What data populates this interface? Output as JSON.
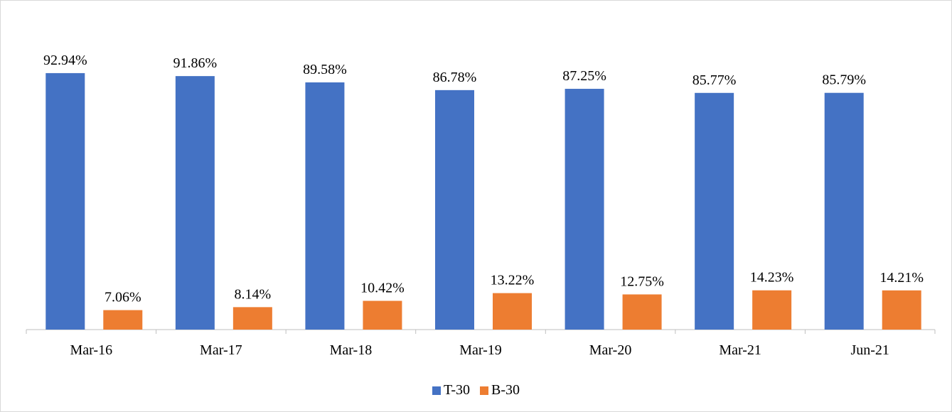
{
  "chart_data": {
    "type": "bar",
    "categories": [
      "Mar-16",
      "Mar-17",
      "Mar-18",
      "Mar-19",
      "Mar-20",
      "Mar-21",
      "Jun-21"
    ],
    "series": [
      {
        "name": "T-30",
        "color": "#4472c4",
        "values": [
          92.94,
          91.86,
          89.58,
          86.78,
          87.25,
          85.77,
          85.79
        ],
        "labels": [
          "92.94%",
          "91.86%",
          "89.58%",
          "86.78%",
          "87.25%",
          "85.77%",
          "85.79%"
        ]
      },
      {
        "name": "B-30",
        "color": "#ed7d31",
        "values": [
          7.06,
          8.14,
          10.42,
          13.22,
          12.75,
          14.23,
          14.21
        ],
        "labels": [
          "7.06%",
          "8.14%",
          "10.42%",
          "13.22%",
          "12.75%",
          "14.23%",
          "14.21%"
        ]
      }
    ],
    "ylim": [
      0,
      100
    ],
    "grid": false,
    "legend_position": "bottom"
  }
}
